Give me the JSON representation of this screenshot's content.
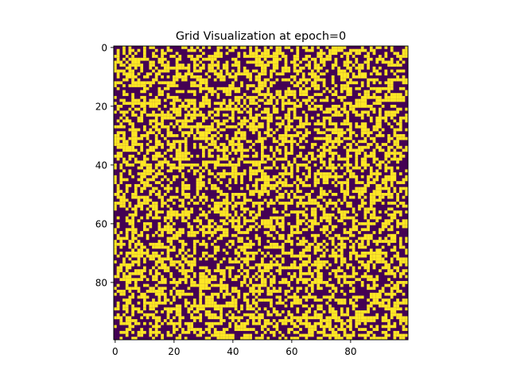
{
  "chart_data": {
    "type": "heatmap",
    "title": "Grid Visualization at epoch=0",
    "xlabel": "",
    "ylabel": "",
    "rows": 100,
    "cols": 100,
    "value_range": [
      0,
      1
    ],
    "fraction_ones": 0.5,
    "xlim": [
      -0.5,
      99.5
    ],
    "ylim": [
      99.5,
      -0.5
    ],
    "x_ticks": [
      0,
      20,
      40,
      60,
      80
    ],
    "y_ticks": [
      0,
      20,
      40,
      60,
      80
    ],
    "x_tick_labels": [
      "0",
      "20",
      "40",
      "60",
      "80"
    ],
    "y_tick_labels": [
      "0",
      "20",
      "40",
      "60",
      "80"
    ],
    "colors": {
      "zero": "#440154",
      "one": "#fde725"
    },
    "grid": false,
    "legend": "none",
    "colorbar": false
  }
}
